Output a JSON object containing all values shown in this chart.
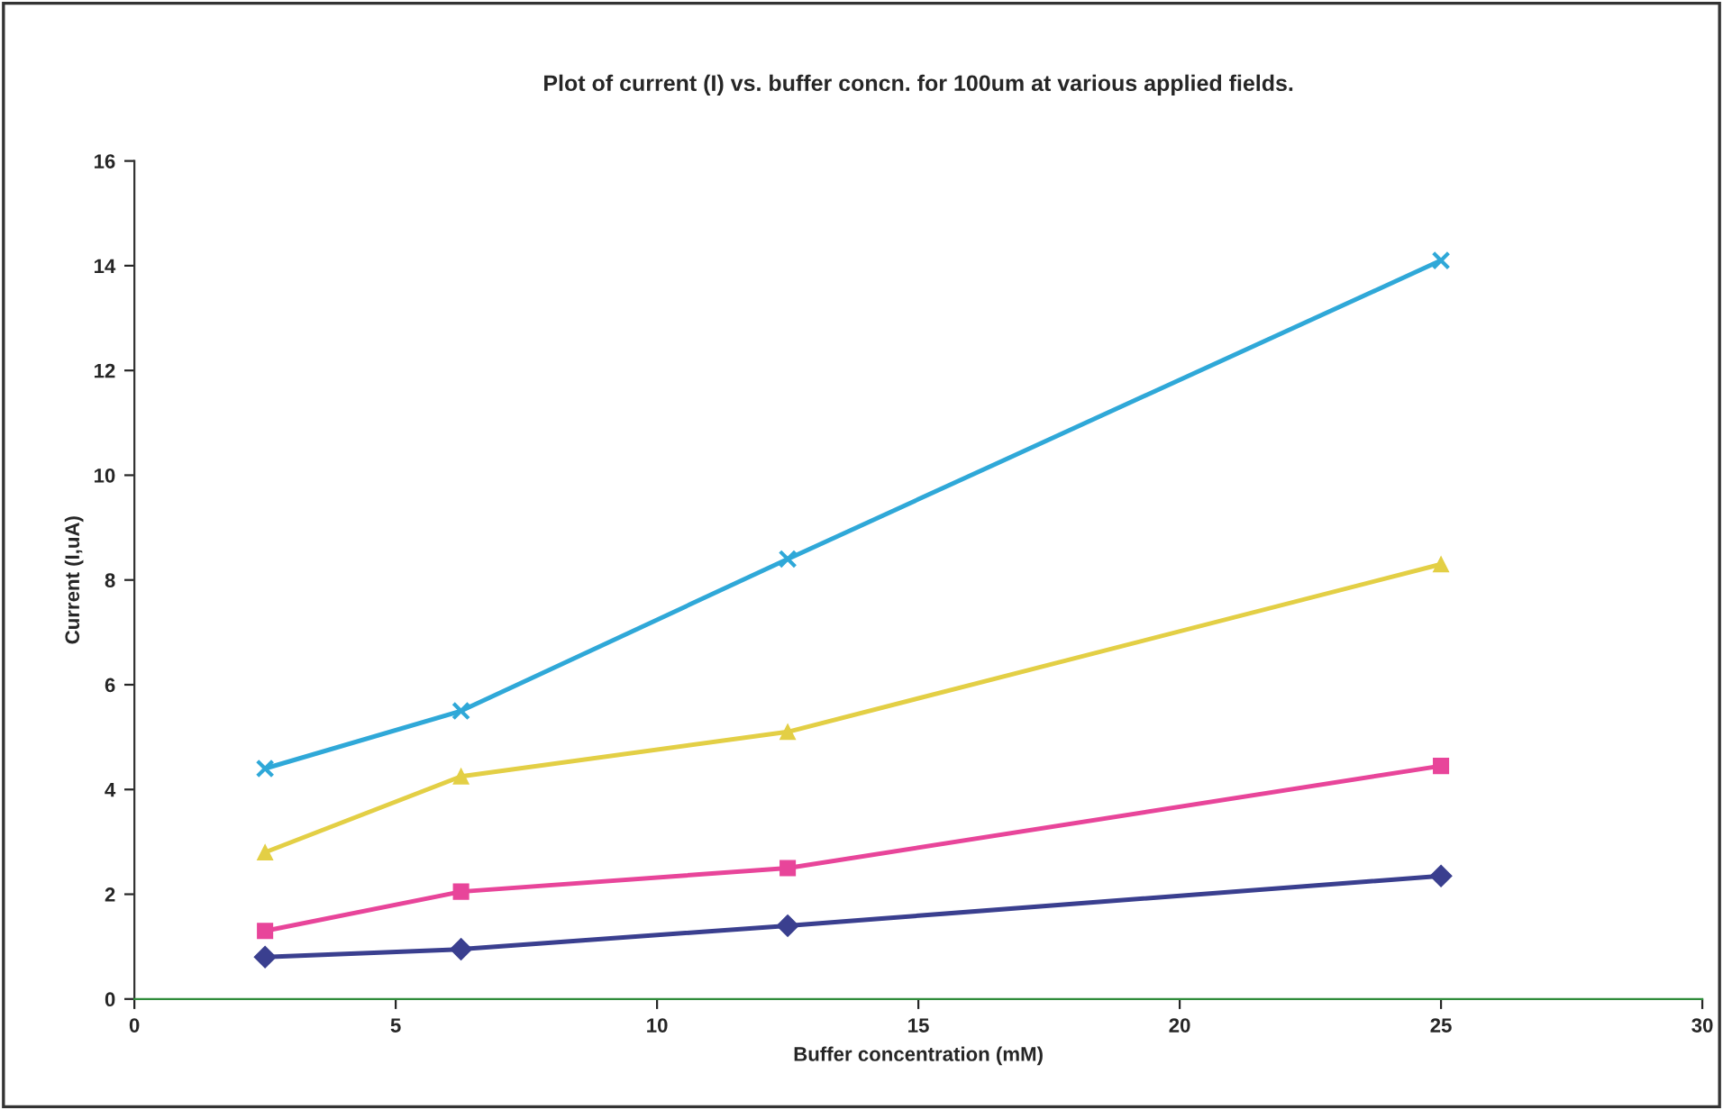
{
  "chart_data": {
    "type": "line",
    "title": "Plot of current (I) vs. buffer concn. for 100um at various applied fields.",
    "xlabel": "Buffer concentration (mM)",
    "ylabel": "Current (I,uA)",
    "x": [
      2.5,
      6.25,
      12.5,
      25
    ],
    "series": [
      {
        "color": "#2fa8d8",
        "marker": "cross",
        "values": [
          4.4,
          5.5,
          8.4,
          14.1
        ]
      },
      {
        "color": "#e3cf45",
        "marker": "triangle",
        "values": [
          2.8,
          4.25,
          5.1,
          8.3
        ]
      },
      {
        "color": "#e8459a",
        "marker": "square",
        "values": [
          1.3,
          2.05,
          2.5,
          4.45
        ]
      },
      {
        "color": "#3a3f8f",
        "marker": "diamond",
        "values": [
          0.8,
          0.95,
          1.4,
          2.35
        ]
      }
    ],
    "xlim": [
      0,
      30
    ],
    "xticks": [
      0,
      5,
      10,
      15,
      20,
      25,
      30
    ],
    "ylim": [
      0,
      16
    ],
    "yticks": [
      0,
      2,
      4,
      6,
      8,
      10,
      12,
      14,
      16
    ],
    "grid": false,
    "legend": false,
    "line_style": "solid"
  }
}
